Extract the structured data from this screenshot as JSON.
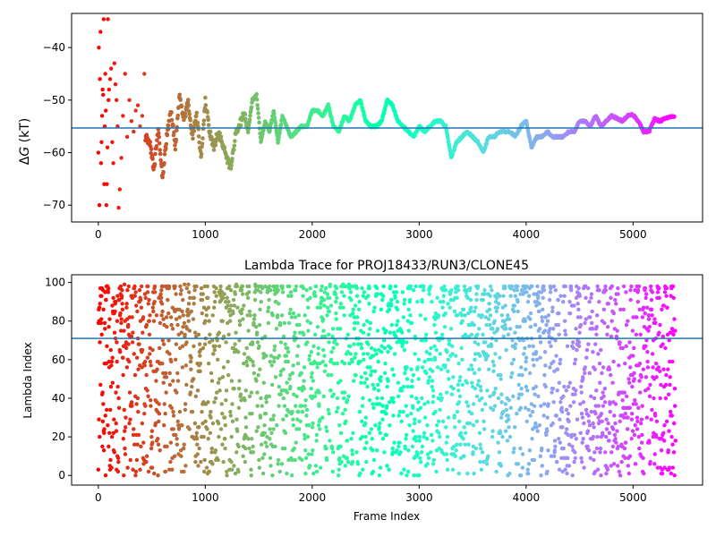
{
  "chart_data": [
    {
      "type": "scatter",
      "title": "",
      "xlabel": "",
      "ylabel_prefix": "Δ",
      "ylabel_var": "G",
      "ylabel_suffix": " (kT)",
      "xlim": [
        -250,
        5650
      ],
      "ylim": [
        -73.2,
        -33.5
      ],
      "xticks": [
        0,
        1000,
        2000,
        3000,
        4000,
        5000
      ],
      "yticks": [
        -70,
        -60,
        -50,
        -40
      ],
      "hline": -55.3,
      "hline_color": "#1f77b4",
      "colormap": "rainbow (red at frame 0 → violet at last frame)",
      "n_frames": 5400,
      "series": [
        {
          "kind": "early_scatter",
          "x": [
            0,
            5,
            10,
            15,
            20,
            25,
            30,
            35,
            40,
            45,
            50,
            55,
            60,
            65,
            70,
            75,
            80,
            85,
            90,
            95,
            100,
            110,
            120,
            130,
            140,
            150,
            160,
            170,
            180,
            190,
            200,
            215,
            230,
            250,
            270,
            290,
            310,
            330,
            350,
            370,
            390,
            410,
            430
          ],
          "y": [
            -60,
            -40,
            -70,
            -46,
            -37,
            -62,
            -58,
            -53,
            -48,
            -49,
            -34.6,
            -66,
            -55,
            -45,
            -52,
            -70,
            -66,
            -59,
            -34.6,
            -50,
            -48,
            -46,
            -44,
            -58,
            -62,
            -43,
            -47,
            -50,
            -55,
            -70.5,
            -67,
            -61,
            -53,
            -45,
            -57,
            -50,
            -54,
            -56,
            -52,
            -51,
            -55,
            -53,
            -45
          ]
        },
        {
          "kind": "trace",
          "x": [
            440,
            480,
            520,
            560,
            600,
            640,
            680,
            720,
            760,
            800,
            840,
            880,
            920,
            960,
            1000,
            1040,
            1080,
            1120,
            1160,
            1200,
            1240,
            1280,
            1320,
            1360,
            1400,
            1440,
            1480,
            1520,
            1560,
            1600,
            1640,
            1680,
            1720,
            1760,
            1800,
            1850,
            1900,
            1950,
            2000,
            2050,
            2100,
            2150,
            2200,
            2250,
            2300,
            2350,
            2400,
            2450,
            2500,
            2550,
            2600,
            2650,
            2700,
            2750,
            2800,
            2850,
            2900,
            2950,
            3000,
            3050,
            3100,
            3150,
            3200,
            3250,
            3300,
            3350,
            3400,
            3450,
            3500,
            3550,
            3600,
            3650,
            3700,
            3750,
            3800,
            3850,
            3900,
            3950,
            4000,
            4050,
            4100,
            4150,
            4200,
            4250,
            4300,
            4350,
            4400,
            4450,
            4500,
            4550,
            4600,
            4650,
            4700,
            4750,
            4800,
            4850,
            4900,
            4950,
            5000,
            5050,
            5100,
            5150,
            5200,
            5250,
            5300,
            5350,
            5390
          ],
          "y": [
            -57,
            -58,
            -63,
            -55.5,
            -65,
            -57,
            -52,
            -59,
            -49,
            -54,
            -50,
            -57,
            -53,
            -61,
            -50,
            -56,
            -59,
            -56,
            -58,
            -61,
            -63,
            -57,
            -55,
            -52,
            -56,
            -50,
            -49,
            -58,
            -54,
            -56,
            -52,
            -58,
            -53,
            -55,
            -57,
            -56,
            -55,
            -55,
            -52,
            -52,
            -53,
            -51,
            -55,
            -56,
            -53,
            -54,
            -51,
            -50,
            -54,
            -55,
            -55,
            -54,
            -50,
            -51,
            -54,
            -55,
            -56,
            -57,
            -55,
            -56,
            -55,
            -54,
            -54,
            -55,
            -61,
            -58,
            -57,
            -56,
            -57,
            -58,
            -60,
            -57,
            -57,
            -56,
            -56,
            -56,
            -57,
            -55,
            -54,
            -59,
            -57,
            -57,
            -56,
            -57,
            -57,
            -57,
            -56,
            -56,
            -54,
            -54,
            -55,
            -53,
            -55,
            -54,
            -53,
            -53.5,
            -54,
            -53,
            -52.8,
            -54,
            -56,
            -56,
            -53.5,
            -54,
            -53.5,
            -53.2,
            -53
          ]
        }
      ]
    },
    {
      "type": "scatter",
      "title": "Lambda Trace for PROJ18433/RUN3/CLONE45",
      "xlabel": "Frame Index",
      "ylabel": "Lambda Index",
      "xlim": [
        -250,
        5650
      ],
      "ylim": [
        -5,
        104
      ],
      "xticks": [
        0,
        1000,
        2000,
        3000,
        4000,
        5000
      ],
      "yticks": [
        0,
        20,
        40,
        60,
        80,
        100
      ],
      "hline": 71,
      "hline_color": "#1f77b4",
      "colormap": "rainbow (red at frame 0 → violet at last frame)",
      "n_frames": 5400,
      "value_range": [
        0,
        99
      ],
      "description": "Dense per-frame scatter of lambda index values spread across 0–99 for every frame."
    }
  ]
}
